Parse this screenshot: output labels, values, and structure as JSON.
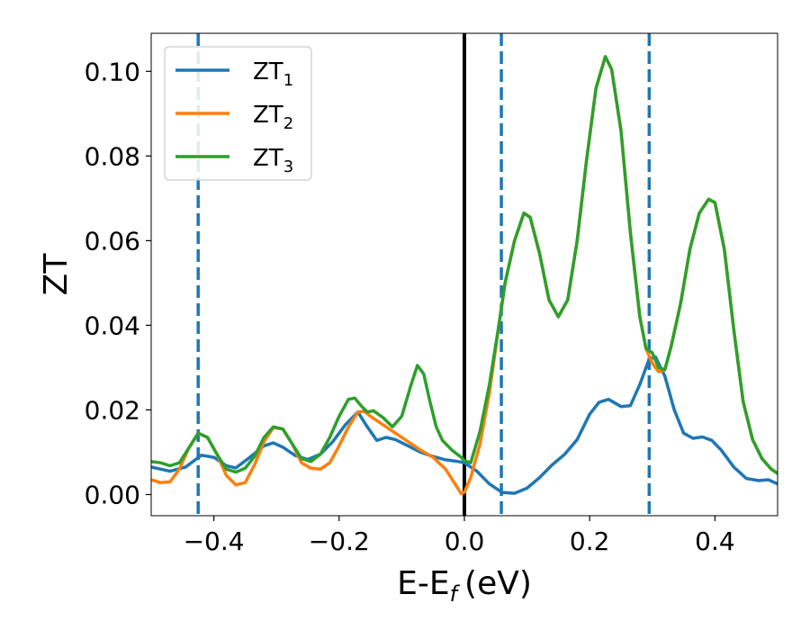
{
  "chart_data": {
    "type": "line",
    "xlabel": "E-E",
    "xlabel_sub": "f",
    "xlabel_unit": "(eV)",
    "ylabel": "ZT",
    "xlim": [
      -0.5,
      0.5
    ],
    "ylim": [
      -0.005,
      0.109
    ],
    "xticks": [
      -0.4,
      -0.2,
      0.0,
      0.2,
      0.4
    ],
    "xtick_labels": [
      "−0.4",
      "−0.2",
      "0.0",
      "0.2",
      "0.4"
    ],
    "yticks": [
      0.0,
      0.02,
      0.04,
      0.06,
      0.08,
      0.1
    ],
    "ytick_labels": [
      "0.00",
      "0.02",
      "0.04",
      "0.06",
      "0.08",
      "0.10"
    ],
    "grid": false,
    "legend_position": "top-left",
    "vlines": [
      {
        "x": 0.0,
        "style": "solid",
        "color": "#000000"
      },
      {
        "x": -0.425,
        "style": "dashed",
        "color": "#1f77b4"
      },
      {
        "x": 0.059,
        "style": "dashed",
        "color": "#1f77b4"
      },
      {
        "x": 0.295,
        "style": "dashed",
        "color": "#1f77b4"
      }
    ],
    "series": [
      {
        "name": "ZT",
        "name_sub": "1",
        "color": "#1f77b4",
        "points": [
          [
            -0.5,
            0.0065
          ],
          [
            -0.47,
            0.0055
          ],
          [
            -0.445,
            0.0065
          ],
          [
            -0.42,
            0.0093
          ],
          [
            -0.4,
            0.0088
          ],
          [
            -0.38,
            0.0068
          ],
          [
            -0.365,
            0.0063
          ],
          [
            -0.345,
            0.0085
          ],
          [
            -0.32,
            0.0115
          ],
          [
            -0.305,
            0.0122
          ],
          [
            -0.29,
            0.0112
          ],
          [
            -0.27,
            0.0092
          ],
          [
            -0.25,
            0.0083
          ],
          [
            -0.23,
            0.0095
          ],
          [
            -0.21,
            0.0125
          ],
          [
            -0.19,
            0.0165
          ],
          [
            -0.17,
            0.0195
          ],
          [
            -0.155,
            0.016
          ],
          [
            -0.14,
            0.0128
          ],
          [
            -0.125,
            0.0135
          ],
          [
            -0.11,
            0.013
          ],
          [
            -0.09,
            0.0115
          ],
          [
            -0.07,
            0.01
          ],
          [
            -0.05,
            0.009
          ],
          [
            -0.03,
            0.0082
          ],
          [
            -0.01,
            0.0078
          ],
          [
            0.0,
            0.0075
          ],
          [
            0.02,
            0.0055
          ],
          [
            0.04,
            0.0025
          ],
          [
            0.06,
            0.0005
          ],
          [
            0.08,
            0.0003
          ],
          [
            0.1,
            0.0015
          ],
          [
            0.12,
            0.004
          ],
          [
            0.14,
            0.007
          ],
          [
            0.16,
            0.0095
          ],
          [
            0.18,
            0.013
          ],
          [
            0.2,
            0.019
          ],
          [
            0.215,
            0.0218
          ],
          [
            0.23,
            0.0225
          ],
          [
            0.25,
            0.0208
          ],
          [
            0.265,
            0.021
          ],
          [
            0.28,
            0.026
          ],
          [
            0.295,
            0.032
          ],
          [
            0.305,
            0.0325
          ],
          [
            0.32,
            0.028
          ],
          [
            0.335,
            0.02
          ],
          [
            0.35,
            0.0145
          ],
          [
            0.365,
            0.0133
          ],
          [
            0.38,
            0.0136
          ],
          [
            0.395,
            0.0128
          ],
          [
            0.41,
            0.0105
          ],
          [
            0.43,
            0.0065
          ],
          [
            0.45,
            0.0038
          ],
          [
            0.47,
            0.0033
          ],
          [
            0.485,
            0.0035
          ],
          [
            0.5,
            0.0025
          ]
        ]
      },
      {
        "name": "ZT",
        "name_sub": "2",
        "color": "#ff7f0e",
        "points": [
          [
            -0.5,
            0.0035
          ],
          [
            -0.485,
            0.0028
          ],
          [
            -0.47,
            0.003
          ],
          [
            -0.455,
            0.006
          ],
          [
            -0.44,
            0.011
          ],
          [
            -0.425,
            0.0145
          ],
          [
            -0.41,
            0.0135
          ],
          [
            -0.395,
            0.0095
          ],
          [
            -0.38,
            0.0045
          ],
          [
            -0.365,
            0.0023
          ],
          [
            -0.35,
            0.0028
          ],
          [
            -0.335,
            0.007
          ],
          [
            -0.32,
            0.0125
          ],
          [
            -0.305,
            0.0158
          ],
          [
            -0.29,
            0.0155
          ],
          [
            -0.275,
            0.012
          ],
          [
            -0.26,
            0.0075
          ],
          [
            -0.245,
            0.0062
          ],
          [
            -0.23,
            0.006
          ],
          [
            -0.215,
            0.0075
          ],
          [
            -0.2,
            0.0115
          ],
          [
            -0.185,
            0.016
          ],
          [
            -0.17,
            0.0195
          ],
          [
            -0.16,
            0.0197
          ],
          [
            -0.15,
            0.0185
          ],
          [
            -0.13,
            0.0165
          ],
          [
            -0.11,
            0.0145
          ],
          [
            -0.09,
            0.0125
          ],
          [
            -0.07,
            0.0105
          ],
          [
            -0.05,
            0.0088
          ],
          [
            -0.03,
            0.006
          ],
          [
            -0.015,
            0.0025
          ],
          [
            -0.005,
            0.0002
          ],
          [
            0.0,
            0.0005
          ],
          [
            0.01,
            0.004
          ],
          [
            0.025,
            0.012
          ],
          [
            0.04,
            0.024
          ],
          [
            0.055,
            0.04
          ],
          [
            0.065,
            0.05
          ],
          [
            0.08,
            0.06
          ],
          [
            0.095,
            0.0665
          ],
          [
            0.105,
            0.0655
          ],
          [
            0.12,
            0.057
          ],
          [
            0.135,
            0.046
          ],
          [
            0.15,
            0.042
          ],
          [
            0.165,
            0.046
          ],
          [
            0.18,
            0.06
          ],
          [
            0.195,
            0.079
          ],
          [
            0.21,
            0.096
          ],
          [
            0.225,
            0.1035
          ],
          [
            0.235,
            0.1005
          ],
          [
            0.25,
            0.086
          ],
          [
            0.265,
            0.062
          ],
          [
            0.28,
            0.042
          ],
          [
            0.29,
            0.0345
          ],
          [
            0.3,
            0.031
          ],
          [
            0.31,
            0.029
          ],
          [
            0.32,
            0.0295
          ],
          [
            0.33,
            0.035
          ],
          [
            0.345,
            0.045
          ],
          [
            0.36,
            0.058
          ],
          [
            0.375,
            0.0665
          ],
          [
            0.39,
            0.0698
          ],
          [
            0.4,
            0.069
          ],
          [
            0.415,
            0.058
          ],
          [
            0.43,
            0.039
          ],
          [
            0.445,
            0.022
          ],
          [
            0.46,
            0.013
          ],
          [
            0.475,
            0.0085
          ],
          [
            0.49,
            0.006
          ],
          [
            0.5,
            0.005
          ]
        ]
      },
      {
        "name": "ZT",
        "name_sub": "3",
        "color": "#2ca02c",
        "points": [
          [
            -0.5,
            0.0078
          ],
          [
            -0.485,
            0.0075
          ],
          [
            -0.47,
            0.0068
          ],
          [
            -0.455,
            0.0075
          ],
          [
            -0.44,
            0.011
          ],
          [
            -0.425,
            0.0145
          ],
          [
            -0.41,
            0.0135
          ],
          [
            -0.395,
            0.0095
          ],
          [
            -0.38,
            0.006
          ],
          [
            -0.365,
            0.0053
          ],
          [
            -0.35,
            0.0062
          ],
          [
            -0.335,
            0.009
          ],
          [
            -0.32,
            0.0135
          ],
          [
            -0.305,
            0.016
          ],
          [
            -0.29,
            0.0155
          ],
          [
            -0.275,
            0.012
          ],
          [
            -0.26,
            0.0085
          ],
          [
            -0.245,
            0.0078
          ],
          [
            -0.23,
            0.0095
          ],
          [
            -0.215,
            0.0135
          ],
          [
            -0.2,
            0.0185
          ],
          [
            -0.185,
            0.0225
          ],
          [
            -0.175,
            0.0228
          ],
          [
            -0.165,
            0.021
          ],
          [
            -0.155,
            0.0195
          ],
          [
            -0.145,
            0.0198
          ],
          [
            -0.13,
            0.0182
          ],
          [
            -0.115,
            0.016
          ],
          [
            -0.1,
            0.0185
          ],
          [
            -0.085,
            0.026
          ],
          [
            -0.075,
            0.0305
          ],
          [
            -0.065,
            0.0285
          ],
          [
            -0.055,
            0.022
          ],
          [
            -0.045,
            0.016
          ],
          [
            -0.035,
            0.0128
          ],
          [
            -0.02,
            0.0105
          ],
          [
            -0.005,
            0.0088
          ],
          [
            0.0,
            0.008
          ],
          [
            0.01,
            0.0075
          ],
          [
            0.025,
            0.015
          ],
          [
            0.04,
            0.026
          ],
          [
            0.055,
            0.04
          ],
          [
            0.065,
            0.05
          ],
          [
            0.08,
            0.06
          ],
          [
            0.095,
            0.0665
          ],
          [
            0.105,
            0.0655
          ],
          [
            0.12,
            0.057
          ],
          [
            0.135,
            0.046
          ],
          [
            0.15,
            0.042
          ],
          [
            0.165,
            0.046
          ],
          [
            0.18,
            0.06
          ],
          [
            0.195,
            0.079
          ],
          [
            0.21,
            0.096
          ],
          [
            0.225,
            0.1035
          ],
          [
            0.235,
            0.1005
          ],
          [
            0.25,
            0.086
          ],
          [
            0.265,
            0.062
          ],
          [
            0.28,
            0.042
          ],
          [
            0.29,
            0.0345
          ],
          [
            0.3,
            0.0335
          ],
          [
            0.31,
            0.03
          ],
          [
            0.32,
            0.0295
          ],
          [
            0.33,
            0.035
          ],
          [
            0.345,
            0.045
          ],
          [
            0.36,
            0.058
          ],
          [
            0.375,
            0.0665
          ],
          [
            0.39,
            0.0698
          ],
          [
            0.4,
            0.069
          ],
          [
            0.415,
            0.058
          ],
          [
            0.43,
            0.039
          ],
          [
            0.445,
            0.022
          ],
          [
            0.46,
            0.013
          ],
          [
            0.475,
            0.0085
          ],
          [
            0.49,
            0.006
          ],
          [
            0.5,
            0.005
          ]
        ]
      }
    ]
  }
}
